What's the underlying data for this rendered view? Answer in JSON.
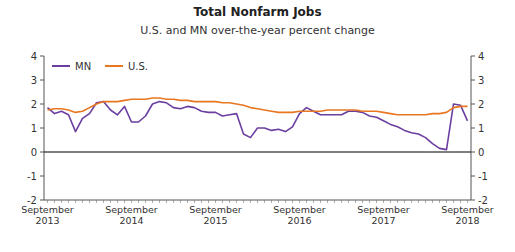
{
  "chart_data": {
    "type": "line",
    "title": "Total Nonfarm Jobs",
    "subtitle": "U.S. and MN over-the-year percent change",
    "categories": [
      "September\n2013",
      null,
      null,
      null,
      null,
      null,
      null,
      null,
      null,
      null,
      null,
      null,
      "September\n2014",
      null,
      null,
      null,
      null,
      null,
      null,
      null,
      null,
      null,
      null,
      null,
      "September\n2015",
      null,
      null,
      null,
      null,
      null,
      null,
      null,
      null,
      null,
      null,
      null,
      "September\n2016",
      null,
      null,
      null,
      null,
      null,
      null,
      null,
      null,
      null,
      null,
      null,
      "September\n2017",
      null,
      null,
      null,
      null,
      null,
      null,
      null,
      null,
      null,
      null,
      null,
      "September\n2018"
    ],
    "series": [
      {
        "name": "MN",
        "color": "#6b3fa0",
        "values": [
          1.85,
          1.6,
          1.7,
          1.55,
          0.85,
          1.4,
          1.6,
          2.05,
          2.1,
          1.75,
          1.55,
          1.9,
          1.25,
          1.25,
          1.5,
          2.0,
          2.1,
          2.05,
          1.85,
          1.8,
          1.9,
          1.85,
          1.7,
          1.65,
          1.65,
          1.5,
          1.55,
          1.6,
          0.75,
          0.6,
          1.0,
          1.0,
          0.9,
          0.95,
          0.85,
          1.05,
          1.6,
          1.85,
          1.7,
          1.55,
          1.55,
          1.55,
          1.55,
          1.7,
          1.7,
          1.65,
          1.5,
          1.45,
          1.3,
          1.15,
          1.05,
          0.9,
          0.8,
          0.75,
          0.6,
          0.35,
          0.15,
          0.1,
          2.0,
          1.95,
          1.3
        ]
      },
      {
        "name": "U.S.",
        "color": "#e87722",
        "values": [
          1.75,
          1.8,
          1.8,
          1.75,
          1.65,
          1.7,
          1.85,
          2.0,
          2.1,
          2.1,
          2.1,
          2.15,
          2.2,
          2.2,
          2.2,
          2.25,
          2.25,
          2.2,
          2.2,
          2.15,
          2.15,
          2.1,
          2.1,
          2.1,
          2.1,
          2.05,
          2.05,
          2.0,
          1.95,
          1.85,
          1.8,
          1.75,
          1.7,
          1.65,
          1.65,
          1.65,
          1.7,
          1.7,
          1.7,
          1.7,
          1.75,
          1.75,
          1.75,
          1.75,
          1.75,
          1.7,
          1.7,
          1.7,
          1.65,
          1.6,
          1.55,
          1.55,
          1.55,
          1.55,
          1.55,
          1.6,
          1.6,
          1.65,
          1.85,
          1.9,
          1.9
        ]
      }
    ],
    "ylim": [
      -2,
      4
    ],
    "yticks": [
      -2,
      -1,
      0,
      1,
      2,
      3,
      4
    ],
    "y2lim": [
      -2,
      4
    ],
    "y2ticks": [
      -2,
      -1,
      0,
      1,
      2,
      3,
      4
    ],
    "grid": false,
    "legend": "upper left"
  }
}
